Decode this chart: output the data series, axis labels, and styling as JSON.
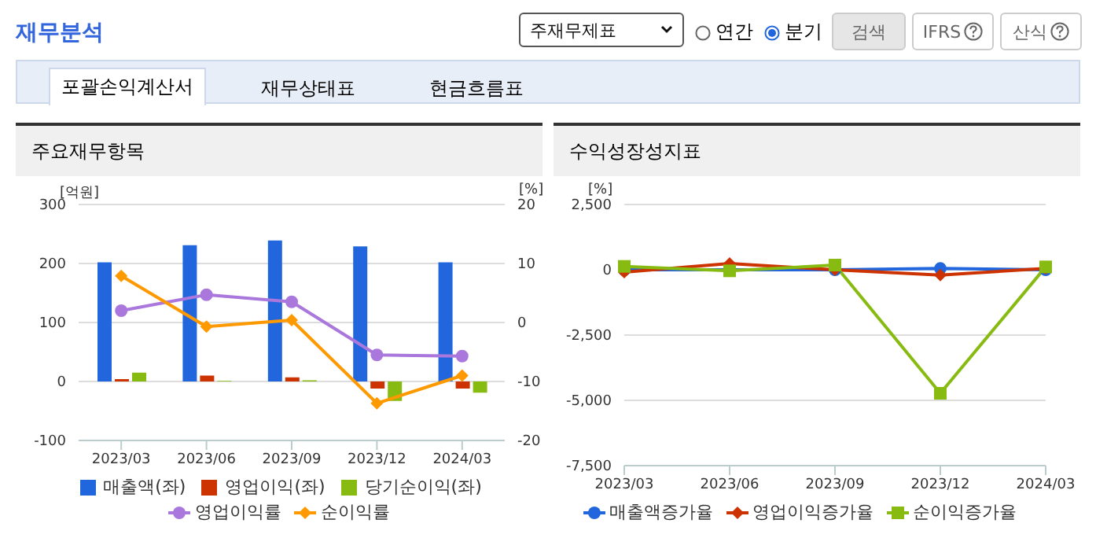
{
  "chart_data": [
    {
      "type": "other",
      "title": "재무분석",
      "annotations": [
        "주재무제표",
        "연간",
        "분기",
        "검색",
        "IFRS",
        "산식",
        "포괄손익계산서",
        "재무상태표",
        "현금흐름표"
      ]
    },
    {
      "type": "bar",
      "title": "주요재무항목",
      "ylabel": "[억원]",
      "y2label": "[%]",
      "categories": [
        "2023/03",
        "2023/06",
        "2023/09",
        "2023/12",
        "2024/03"
      ],
      "series": [
        {
          "name": "매출액(좌)",
          "color": "#2266dd",
          "values": [
            202,
            231,
            239,
            229,
            202
          ]
        },
        {
          "name": "영업이익(좌)",
          "color": "#cc3300",
          "values": [
            4,
            10,
            7,
            -12,
            -12
          ]
        },
        {
          "name": "당기순이익(좌)",
          "color": "#88bb11",
          "values": [
            15,
            1,
            2,
            -33,
            -19
          ]
        },
        {
          "name": "영업이익률",
          "type": "line",
          "axis": "y2",
          "marker": "circle",
          "color": "#aa77dd",
          "values": [
            2.0,
            4.7,
            3.5,
            -5.5,
            -5.7
          ]
        },
        {
          "name": "순이익률",
          "type": "line",
          "axis": "y2",
          "marker": "diamond",
          "color": "#ff9900",
          "values": [
            7.9,
            -0.7,
            0.4,
            -13.7,
            -9.0
          ]
        }
      ],
      "ylim": [
        -100,
        300
      ],
      "yticks": [
        -100,
        0,
        100,
        200,
        300
      ],
      "y2lim": [
        -20,
        20
      ],
      "y2ticks": [
        -20,
        -10,
        0,
        10,
        20
      ],
      "grid": "y",
      "legend": "bottom"
    },
    {
      "type": "line",
      "title": "수익성장성지표",
      "ylabel": "[%]",
      "categories": [
        "2023/03",
        "2023/06",
        "2023/09",
        "2023/12",
        "2024/03"
      ],
      "series": [
        {
          "name": "매출액증가율",
          "marker": "circle",
          "color": "#2266dd",
          "values": [
            0,
            0,
            0,
            50,
            0
          ]
        },
        {
          "name": "영업이익증가율",
          "marker": "diamond",
          "color": "#cc3300",
          "values": [
            -90,
            240,
            0,
            -200,
            50
          ]
        },
        {
          "name": "순이익증가율",
          "marker": "square",
          "color": "#88bb11",
          "values": [
            130,
            -40,
            180,
            -4730,
            110
          ]
        }
      ],
      "ylim": [
        -7500,
        2500
      ],
      "yticks": [
        {
          "value": -7500,
          "label": "-7,500"
        },
        {
          "value": -5000,
          "label": "-5,000"
        },
        {
          "value": -2500,
          "label": "-2,500"
        },
        0,
        {
          "value": 2500,
          "label": "2,500"
        }
      ],
      "grid": "y",
      "legend": "bottom"
    }
  ]
}
